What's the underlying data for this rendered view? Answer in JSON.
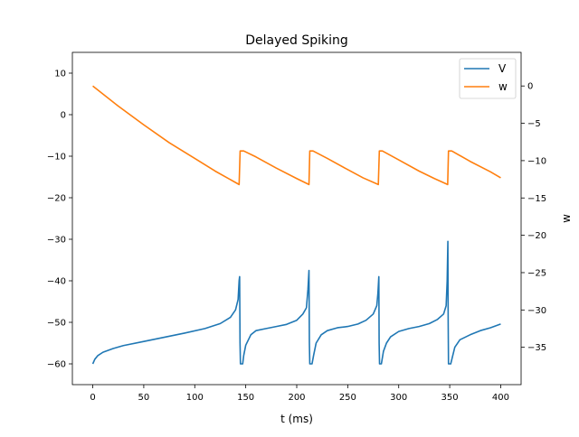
{
  "chart_data": {
    "type": "line",
    "title": "Delayed Spiking",
    "xlabel": "t (ms)",
    "ylabel_left": "",
    "ylabel_right": "w",
    "xlim": [
      -20,
      420
    ],
    "ylim_left": [
      -65,
      15
    ],
    "ylim_right": [
      -40,
      4.5
    ],
    "x_ticks": [
      0,
      50,
      100,
      150,
      200,
      250,
      300,
      350,
      400
    ],
    "y_left_ticks": [
      10,
      0,
      -10,
      -20,
      -30,
      -40,
      -50,
      -60
    ],
    "y_right_ticks": [
      0,
      -5,
      -10,
      -15,
      -20,
      -25,
      -30,
      -35
    ],
    "grid": false,
    "legend": {
      "location": "upper right",
      "entries": [
        "V",
        "w"
      ]
    },
    "series": [
      {
        "name": "V",
        "axis": "left",
        "color": "#1f77b4",
        "points": [
          [
            0,
            -60
          ],
          [
            2,
            -58.9
          ],
          [
            5,
            -58
          ],
          [
            10,
            -57.2
          ],
          [
            20,
            -56.3
          ],
          [
            30,
            -55.6
          ],
          [
            50,
            -54.6
          ],
          [
            70,
            -53.6
          ],
          [
            90,
            -52.6
          ],
          [
            110,
            -51.5
          ],
          [
            125,
            -50.3
          ],
          [
            135,
            -48.8
          ],
          [
            140,
            -47
          ],
          [
            142.5,
            -44.5
          ],
          [
            143.5,
            -40
          ],
          [
            144,
            -39
          ],
          [
            144.4,
            -55
          ],
          [
            144.8,
            -60
          ],
          [
            147,
            -60
          ],
          [
            148,
            -58
          ],
          [
            150,
            -55.5
          ],
          [
            155,
            -53
          ],
          [
            160,
            -52
          ],
          [
            170,
            -51.5
          ],
          [
            180,
            -51
          ],
          [
            190,
            -50.5
          ],
          [
            200,
            -49.5
          ],
          [
            206,
            -48
          ],
          [
            209.5,
            -46.5
          ],
          [
            211,
            -42
          ],
          [
            212,
            -37.5
          ],
          [
            212.4,
            -55
          ],
          [
            212.8,
            -60
          ],
          [
            215,
            -60
          ],
          [
            216.5,
            -58
          ],
          [
            219,
            -55
          ],
          [
            224,
            -53
          ],
          [
            230,
            -52
          ],
          [
            240,
            -51.3
          ],
          [
            250,
            -51
          ],
          [
            260,
            -50.4
          ],
          [
            268,
            -49.5
          ],
          [
            275,
            -48
          ],
          [
            278.5,
            -46
          ],
          [
            279.6,
            -43
          ],
          [
            280.5,
            -39
          ],
          [
            280.8,
            -55
          ],
          [
            281.2,
            -60
          ],
          [
            283,
            -60
          ],
          [
            285,
            -57
          ],
          [
            288,
            -55
          ],
          [
            292,
            -53.5
          ],
          [
            300,
            -52.2
          ],
          [
            310,
            -51.5
          ],
          [
            320,
            -51
          ],
          [
            330,
            -50.3
          ],
          [
            338,
            -49.3
          ],
          [
            344,
            -48
          ],
          [
            346.5,
            -46
          ],
          [
            347.5,
            -40
          ],
          [
            348.2,
            -30.5
          ],
          [
            348.5,
            -50
          ],
          [
            348.8,
            -60
          ],
          [
            351,
            -60
          ],
          [
            352.5,
            -58.5
          ],
          [
            355,
            -56
          ],
          [
            360,
            -54.2
          ],
          [
            370,
            -53
          ],
          [
            380,
            -52
          ],
          [
            390,
            -51.3
          ],
          [
            400,
            -50.4
          ]
        ]
      },
      {
        "name": "w",
        "axis": "right",
        "color": "#ff7f0e",
        "points": [
          [
            0,
            0
          ],
          [
            25,
            -2.7
          ],
          [
            50,
            -5.2
          ],
          [
            75,
            -7.6
          ],
          [
            100,
            -9.7
          ],
          [
            120,
            -11.4
          ],
          [
            143.5,
            -13.2
          ],
          [
            144.5,
            -8.7
          ],
          [
            148,
            -8.7
          ],
          [
            160,
            -9.5
          ],
          [
            180,
            -11
          ],
          [
            200,
            -12.4
          ],
          [
            212,
            -13.2
          ],
          [
            212.8,
            -8.7
          ],
          [
            216,
            -8.7
          ],
          [
            230,
            -9.7
          ],
          [
            250,
            -11.2
          ],
          [
            265,
            -12.3
          ],
          [
            280,
            -13.2
          ],
          [
            281,
            -8.7
          ],
          [
            284,
            -8.7
          ],
          [
            300,
            -9.9
          ],
          [
            320,
            -11.4
          ],
          [
            335,
            -12.4
          ],
          [
            348,
            -13.2
          ],
          [
            348.8,
            -8.7
          ],
          [
            352,
            -8.7
          ],
          [
            370,
            -10.1
          ],
          [
            390,
            -11.5
          ],
          [
            400,
            -12.3
          ]
        ]
      }
    ]
  }
}
